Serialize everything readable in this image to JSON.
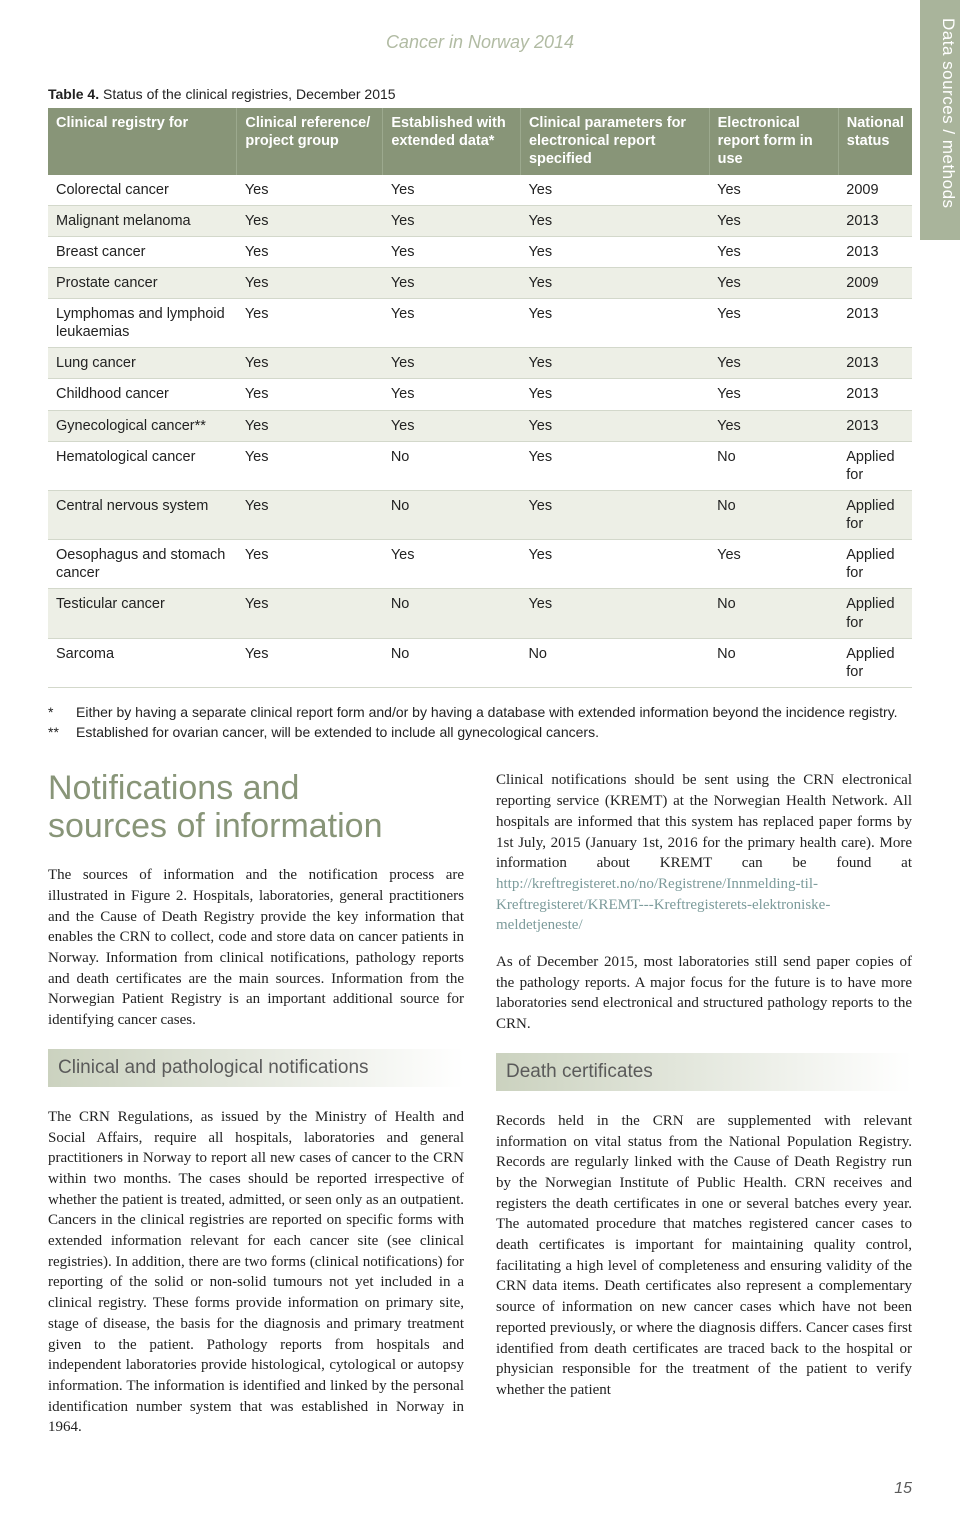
{
  "running_head": "Cancer in Norway 2014",
  "side_tab": "Data sources / methods",
  "table": {
    "caption_label": "Table 4.",
    "caption_text": "Status of the clinical registries, December 2015",
    "columns": [
      "Clinical registry for",
      "Clinical reference/ project group",
      "Established with extended data*",
      "Clinical parameters for electronical report specified",
      "Electronical report form in use",
      "National status"
    ],
    "col_widths": [
      "22%",
      "17%",
      "16%",
      "22%",
      "15%",
      "10%"
    ],
    "rows": [
      {
        "cells": [
          "Colorectal cancer",
          "Yes",
          "Yes",
          "Yes",
          "Yes",
          "2009"
        ],
        "alt": false
      },
      {
        "cells": [
          "Malignant melanoma",
          "Yes",
          "Yes",
          "Yes",
          "Yes",
          "2013"
        ],
        "alt": true
      },
      {
        "cells": [
          "Breast cancer",
          "Yes",
          "Yes",
          "Yes",
          "Yes",
          "2013"
        ],
        "alt": false
      },
      {
        "cells": [
          "Prostate cancer",
          "Yes",
          "Yes",
          "Yes",
          "Yes",
          "2009"
        ],
        "alt": true
      },
      {
        "cells": [
          "Lymphomas and lymphoid leukaemias",
          "Yes",
          "Yes",
          "Yes",
          "Yes",
          "2013"
        ],
        "alt": false
      },
      {
        "cells": [
          "Lung cancer",
          "Yes",
          "Yes",
          "Yes",
          "Yes",
          "2013"
        ],
        "alt": true
      },
      {
        "cells": [
          "Childhood cancer",
          "Yes",
          "Yes",
          "Yes",
          "Yes",
          "2013"
        ],
        "alt": false
      },
      {
        "cells": [
          "Gynecological cancer**",
          "Yes",
          "Yes",
          "Yes",
          "Yes",
          "2013"
        ],
        "alt": true
      },
      {
        "cells": [
          "Hematological cancer",
          "Yes",
          "No",
          "Yes",
          "No",
          "Applied for"
        ],
        "alt": false
      },
      {
        "cells": [
          "Central nervous system",
          "Yes",
          "No",
          "Yes",
          "No",
          "Applied for"
        ],
        "alt": true
      },
      {
        "cells": [
          "Oesophagus and stomach cancer",
          "Yes",
          "Yes",
          "Yes",
          "Yes",
          "Applied for"
        ],
        "alt": false
      },
      {
        "cells": [
          "Testicular cancer",
          "Yes",
          "No",
          "Yes",
          "No",
          "Applied for"
        ],
        "alt": true
      },
      {
        "cells": [
          "Sarcoma",
          "Yes",
          "No",
          "No",
          "No",
          "Applied for"
        ],
        "alt": false
      }
    ]
  },
  "footnotes": [
    {
      "mark": "*",
      "text": "Either by having a separate clinical report form and/or by having a database with extended information beyond the incidence registry."
    },
    {
      "mark": "**",
      "text": "Established for ovarian cancer, will be extended to include all gynecological cancers."
    }
  ],
  "left": {
    "h2a": "Notifications and",
    "h2b": "sources of information",
    "p1": "The sources of information and the notification process are illustrated in Figure 2. Hospitals, laboratories, general practitioners and the Cause of Death Registry provide the key information that enables the CRN to collect, code and store data on cancer patients in Norway. Information from clinical notifications, pathology reports and death certificates are the main sources. Information from the Norwegian Patient Registry is an important additional source for identifying cancer cases.",
    "sub1": "Clinical and pathological notifications",
    "p2": "The CRN Regulations, as issued by the Ministry of Health and Social Affairs, require all hospitals, laboratories and general practitioners in Norway to report all new cases of cancer to the CRN within two months. The cases should be reported irrespective of whether the patient is treated, admitted, or seen only as an outpatient. Cancers in the clinical registries are reported on specific forms with extended information relevant for each cancer site (see clinical registries). In addition, there are two forms (clinical notifications) for reporting of the solid or non-solid tumours not yet included in a clinical registry. These forms provide information on primary site, stage of disease, the basis for the diagnosis and primary treatment given to the patient. Pathology reports from hospitals and independent laboratories provide histological, cytological or autopsy information. The information is identified and linked by the personal identification number system that was established in Norway in 1964."
  },
  "right": {
    "p1_pre": "Clinical notifications should be sent using the CRN electronical reporting service (KREMT) at the Norwegian Health Network. All hospitals are informed that this system has replaced paper forms by 1st July, 2015 (January 1st, 2016 for the primary health care). More information about KREMT can be found at ",
    "link": "http://kreftregisteret.no/no/Registrene/Innmelding-til-Kreftregisteret/KREMT---Kreftregisterets-elektroniske-meldetjeneste/",
    "p2": "As of December 2015, most laboratories still send paper copies of the pathology reports. A major focus for the future is to have more laboratories send electronical and structured pathology reports to the CRN.",
    "sub1": "Death certificates",
    "p3": "Records held in the CRN are supplemented with relevant information on vital status from the National Population Registry. Records are regularly linked with the Cause of Death Registry run by the Norwegian Institute of Public Health. CRN receives and registers the death certificates in one or several batches every year. The automated procedure that matches registered cancer cases to death certificates is important for maintaining quality control, facilitating a high level of completeness and ensuring validity of the CRN data items. Death certificates also represent a complementary source of information on new cancer cases which have not been reported previously, or where the diagnosis differs. Cancer cases first identified from death certificates are traced back to the hospital or physician responsible for the treatment of the patient to verify whether the patient"
  },
  "page_num": "15"
}
